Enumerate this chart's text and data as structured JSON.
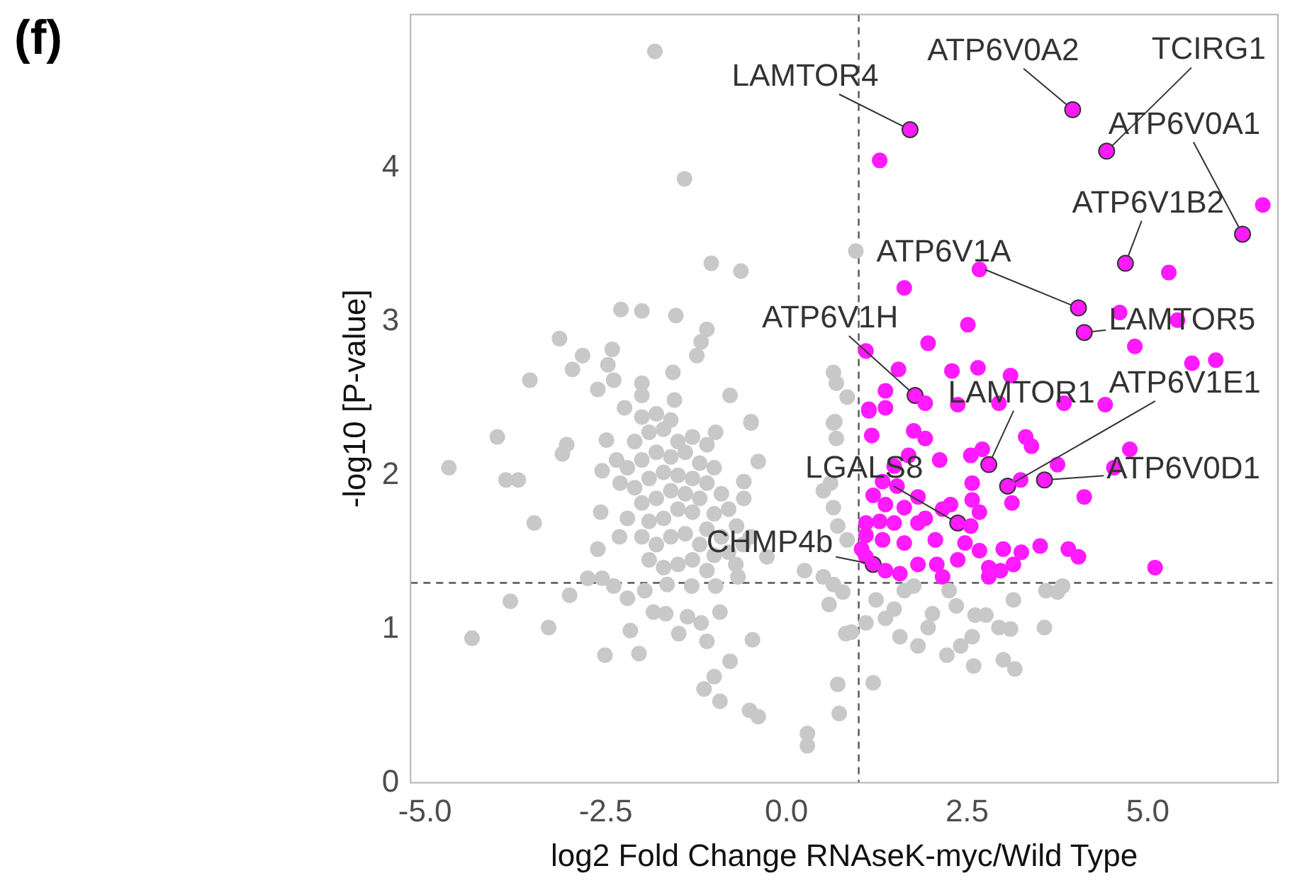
{
  "chart_data": {
    "type": "scatter",
    "title": "(f)",
    "xlabel": "log2 Fold Change RNAseK-myc/Wild Type",
    "ylabel": "-log10 [P-value]",
    "xlim": [
      -5.2,
      6.8
    ],
    "ylim": [
      0,
      5
    ],
    "xticks": [
      {
        "value": -5,
        "label": "-5.0"
      },
      {
        "value": -2.5,
        "label": "-2.5"
      },
      {
        "value": 0,
        "label": "0.0"
      },
      {
        "value": 2.5,
        "label": "2.5"
      },
      {
        "value": 5,
        "label": "5.0"
      }
    ],
    "yticks": [
      0,
      1,
      2,
      3,
      4
    ],
    "grid": false,
    "legend": false,
    "marker": "circle",
    "ref_lines": [
      {
        "axis": "x",
        "value": 1,
        "line_style": "dashed",
        "color": "#555555"
      },
      {
        "axis": "y",
        "value": 1.3,
        "line_style": "dashed",
        "color": "#555555"
      }
    ],
    "series": [
      {
        "color": "#c8c8c8",
        "x": [
          -1.82,
          -1.41,
          -1.04,
          -0.63,
          0.96,
          -2.29,
          -2.0,
          -1.53,
          -1.1,
          -3.14,
          -2.41,
          -2.82,
          -1.18,
          -1.24,
          -2.47,
          -2.96,
          -3.55,
          -2.39,
          -2.61,
          -1.57,
          -2.0,
          -1.55,
          -0.78,
          0.65,
          0.69,
          0.84,
          0.67,
          -0.49,
          -2.24,
          -2.0,
          -4.67,
          -4.0,
          -3.88,
          -3.71,
          -3.49,
          -3.04,
          -3.1,
          -2.49,
          -2.55,
          -2.35,
          -2.57,
          -2.31,
          -2.61,
          -2.75,
          -2.55,
          -2.39,
          -3.0,
          -3.82,
          -3.29,
          -4.35,
          -2.16,
          -2.51,
          -2.04,
          -2.2,
          -1.96,
          -1.84,
          -1.67,
          -1.49,
          -1.37,
          -1.18,
          -1.1,
          -0.92,
          -0.47,
          -0.78,
          -1.0,
          -1.14,
          -0.92,
          -0.51,
          -0.39,
          0.29,
          0.29,
          0.71,
          0.73,
          0.82,
          0.59,
          0.78,
          0.25,
          0.51,
          0.65,
          -0.49,
          -0.98,
          -1.1,
          -0.39,
          -0.59,
          -0.59,
          -0.69,
          -0.27,
          -0.67,
          -0.98,
          -1.31,
          -1.65,
          0.65,
          0.69,
          0.61,
          0.65,
          0.71,
          0.84,
          0.51,
          -2.0,
          -1.8,
          -1.6,
          -1.7,
          -1.9,
          -2.1,
          -1.5,
          -1.3,
          -1.4,
          -1.6,
          -1.8,
          -2.0,
          -2.2,
          -1.2,
          -1.0,
          -1.1,
          -1.3,
          -1.5,
          -1.7,
          -1.9,
          -2.1,
          -2.3,
          -1.4,
          -1.6,
          -1.8,
          -2.0,
          -1.2,
          -0.9,
          -0.8,
          -1.0,
          -1.3,
          -1.5,
          -1.7,
          -1.9,
          -2.2,
          -1.1,
          -1.4,
          -1.6,
          -0.9,
          -1.2,
          -1.8,
          -2.0,
          -1.0,
          -1.3,
          -1.5,
          -0.8,
          -1.7,
          -1.9,
          -1.1,
          -0.6,
          -0.5,
          -0.7,
          1.63,
          1.76,
          2.25,
          2.35,
          2.02,
          1.96,
          1.57,
          1.37,
          1.24,
          1.1,
          1.49,
          1.82,
          2.22,
          2.41,
          2.57,
          2.61,
          2.76,
          2.94,
          3.1,
          3.14,
          3.57,
          3.59,
          3.75,
          3.82,
          2.59,
          3.0,
          3.16,
          1.2,
          0.9
        ],
        "values": [
          4.76,
          3.93,
          3.38,
          3.33,
          3.46,
          3.08,
          3.07,
          3.04,
          2.95,
          2.89,
          2.82,
          2.78,
          2.87,
          2.78,
          2.72,
          2.69,
          2.62,
          2.62,
          2.56,
          2.67,
          2.6,
          2.49,
          2.52,
          2.67,
          2.6,
          2.51,
          2.35,
          2.35,
          2.44,
          2.52,
          2.05,
          2.25,
          1.97,
          1.97,
          1.69,
          2.2,
          2.14,
          2.23,
          2.03,
          2.1,
          1.76,
          1.6,
          1.52,
          1.33,
          1.33,
          1.28,
          1.22,
          1.18,
          1.01,
          0.94,
          0.99,
          0.83,
          0.84,
          1.2,
          1.25,
          1.11,
          1.1,
          0.97,
          1.08,
          1.04,
          0.92,
          1.11,
          0.93,
          0.79,
          0.69,
          0.61,
          0.53,
          0.47,
          0.43,
          0.32,
          0.24,
          0.64,
          0.45,
          0.97,
          1.16,
          1.24,
          1.38,
          1.34,
          1.29,
          2.34,
          2.28,
          2.2,
          2.09,
          1.96,
          1.85,
          1.67,
          1.47,
          1.34,
          1.28,
          1.28,
          1.29,
          2.34,
          2.24,
          1.95,
          1.79,
          1.67,
          1.58,
          1.9,
          2.38,
          2.4,
          2.36,
          2.3,
          2.28,
          2.22,
          2.22,
          2.25,
          2.15,
          2.12,
          2.15,
          2.1,
          2.05,
          2.08,
          2.05,
          1.95,
          1.98,
          2.0,
          2.02,
          1.98,
          1.92,
          1.95,
          1.88,
          1.9,
          1.85,
          1.82,
          1.85,
          1.88,
          1.78,
          1.75,
          1.76,
          1.78,
          1.72,
          1.7,
          1.72,
          1.65,
          1.62,
          1.6,
          1.6,
          1.55,
          1.55,
          1.6,
          1.48,
          1.45,
          1.42,
          1.5,
          1.4,
          1.45,
          1.38,
          1.55,
          1.6,
          1.42,
          1.25,
          1.28,
          1.25,
          1.15,
          1.1,
          1.01,
          0.95,
          1.07,
          1.19,
          1.04,
          1.13,
          0.89,
          0.83,
          0.89,
          0.95,
          1.09,
          1.09,
          1.01,
          1.0,
          1.19,
          1.01,
          1.25,
          1.24,
          1.28,
          0.76,
          0.8,
          0.74,
          0.65,
          0.98
        ]
      },
      {
        "color": "#ff1aff",
        "x": [
          1.29,
          6.59,
          5.29,
          2.67,
          1.63,
          4.61,
          5.41,
          4.82,
          2.51,
          1.96,
          1.1,
          5.61,
          5.94,
          2.29,
          2.65,
          3.1,
          1.55,
          1.37,
          1.92,
          2.37,
          4.41,
          3.84,
          2.94,
          1.14,
          1.14,
          1.37,
          1.76,
          1.92,
          1.18,
          2.71,
          2.55,
          3.31,
          3.39,
          4.75,
          4.53,
          3.75,
          2.12,
          3.24,
          2.57,
          4.12,
          3.12,
          1.82,
          1.63,
          1.37,
          2.27,
          2.57,
          2.67,
          1.92,
          1.29,
          1.1,
          1.49,
          1.82,
          2.55,
          1.1,
          1.33,
          1.63,
          2.06,
          2.47,
          3.0,
          3.25,
          3.51,
          3.9,
          4.04,
          5.1,
          2.67,
          2.37,
          1.82,
          1.57,
          2.08,
          2.8,
          2.96,
          3.14,
          2.8,
          1.37,
          1.1,
          1.04,
          2.16,
          1.69,
          1.49,
          1.33,
          1.53,
          1.2,
          2.16
        ],
        "values": [
          4.05,
          3.76,
          3.32,
          3.34,
          3.22,
          3.06,
          3.01,
          2.84,
          2.98,
          2.86,
          2.81,
          2.73,
          2.75,
          2.68,
          2.7,
          2.65,
          2.69,
          2.55,
          2.47,
          2.46,
          2.46,
          2.47,
          2.47,
          2.43,
          2.42,
          2.44,
          2.29,
          2.24,
          2.26,
          2.17,
          2.13,
          2.25,
          2.19,
          2.17,
          2.05,
          2.07,
          2.1,
          1.97,
          1.95,
          1.86,
          1.82,
          1.86,
          1.79,
          1.81,
          1.81,
          1.84,
          1.76,
          1.72,
          1.7,
          1.69,
          1.69,
          1.69,
          1.67,
          1.61,
          1.58,
          1.56,
          1.58,
          1.56,
          1.52,
          1.5,
          1.54,
          1.52,
          1.47,
          1.4,
          1.51,
          1.45,
          1.42,
          1.36,
          1.42,
          1.4,
          1.38,
          1.42,
          1.34,
          1.38,
          1.47,
          1.52,
          1.34,
          2.13,
          2.06,
          1.96,
          1.93,
          1.87,
          1.78
        ]
      },
      {
        "color": "#ff1aff",
        "x": [
          1.71,
          3.96,
          4.43,
          6.31,
          4.69,
          4.04,
          4.12,
          1.78,
          2.8,
          3.06,
          3.57,
          2.37,
          1.2
        ],
        "values": [
          4.25,
          4.38,
          4.11,
          3.57,
          3.38,
          3.09,
          2.93,
          2.52,
          2.07,
          1.93,
          1.97,
          1.69,
          1.42
        ]
      }
    ],
    "annotations": [
      {
        "text": "LAMTOR4",
        "x": 1.71,
        "y": 4.25
      },
      {
        "text": "ATP6V0A2",
        "x": 3.96,
        "y": 4.38
      },
      {
        "text": "TCIRG1",
        "x": 4.43,
        "y": 4.11
      },
      {
        "text": "ATP6V0A1",
        "x": 6.31,
        "y": 3.57
      },
      {
        "text": "ATP6V1B2",
        "x": 4.69,
        "y": 3.38
      },
      {
        "text": "ATP6V1A",
        "x": 4.04,
        "y": 3.09
      },
      {
        "text": "LAMTOR5",
        "x": 4.12,
        "y": 2.93
      },
      {
        "text": "ATP6V1H",
        "x": 1.78,
        "y": 2.52
      },
      {
        "text": "LAMTOR1",
        "x": 2.8,
        "y": 2.07
      },
      {
        "text": "ATP6V1E1",
        "x": 3.06,
        "y": 1.93
      },
      {
        "text": "ATP6V0D1",
        "x": 3.57,
        "y": 1.97
      },
      {
        "text": "LGALS8",
        "x": 2.37,
        "y": 1.69
      },
      {
        "text": "CHMP4b",
        "x": 1.2,
        "y": 1.42
      }
    ]
  }
}
